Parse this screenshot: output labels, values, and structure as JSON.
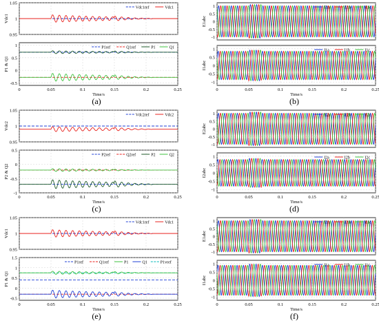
{
  "colors": {
    "ref_blue": "#1f3fd6",
    "red": "#e8201c",
    "green": "#3ec23e",
    "darkgreen": "#1f5a2a",
    "cyan": "#00b8b8",
    "axis": "#000000",
    "grid": "#c8c8c8"
  },
  "captions": [
    "(a)",
    "(b)",
    "(c)",
    "(d)",
    "(e)",
    "(f)"
  ],
  "chart_data": [
    {
      "id": "a-top",
      "type": "line",
      "ylabel": "Vdc1",
      "xlim": [
        0,
        0.25
      ],
      "ylim": [
        0.95,
        1.05
      ],
      "yticks": [
        "0.95",
        "1",
        "1.05"
      ],
      "xticks": [],
      "xlabel": "",
      "grid": true,
      "legend": [
        {
          "name": "Vdc1ref",
          "style": "dash",
          "color": "ref_blue"
        },
        {
          "name": "Vdc1",
          "style": "solid",
          "color": "red"
        }
      ],
      "series": [
        {
          "name": "Vdc1ref",
          "color": "ref_blue",
          "dash": true,
          "x": [
            0,
            0.25
          ],
          "y": [
            1.0,
            1.0
          ]
        },
        {
          "name": "Vdc1",
          "color": "red",
          "osc": {
            "base": 1.0,
            "amp1": 0.012,
            "amp2": 0.008,
            "f": 95
          }
        }
      ]
    },
    {
      "id": "a-bot",
      "type": "line",
      "ylabel": "P1 & Q1",
      "xlim": [
        0,
        0.25
      ],
      "ylim": [
        -0.6,
        1.1
      ],
      "yticks": [
        "-0.5",
        "0",
        "0.5",
        "1"
      ],
      "xticks": [
        "0",
        "0.05",
        "0.1",
        "0.15",
        "0.2",
        "0.25"
      ],
      "xlabel": "Time/s",
      "grid": true,
      "legend": [
        {
          "name": "P1ref",
          "style": "dash",
          "color": "ref_blue"
        },
        {
          "name": "Q1ref",
          "style": "dash",
          "color": "red"
        },
        {
          "name": "P1",
          "style": "solid",
          "color": "darkgreen"
        },
        {
          "name": "Q1",
          "style": "solid",
          "color": "green"
        }
      ],
      "series": [
        {
          "name": "P1ref",
          "color": "ref_blue",
          "dash": true,
          "x": [
            0,
            0.25
          ],
          "y": [
            0.72,
            0.72
          ]
        },
        {
          "name": "Q1ref",
          "color": "red",
          "dash": true,
          "x": [
            0,
            0.25
          ],
          "y": [
            -0.28,
            -0.28
          ]
        },
        {
          "name": "P1",
          "color": "darkgreen",
          "osc": {
            "base": 0.72,
            "amp1": 0.06,
            "amp2": 0.05,
            "f": 95
          }
        },
        {
          "name": "Q1",
          "color": "green",
          "osc": {
            "base": -0.28,
            "amp1": 0.16,
            "amp2": 0.1,
            "f": 95
          }
        }
      ]
    },
    {
      "id": "b-top",
      "type": "line",
      "ylabel": "E1abc",
      "xlim": [
        0,
        0.25
      ],
      "ylim": [
        -1.2,
        1.2
      ],
      "yticks": [
        "-1",
        "-0.5",
        "0",
        "0.5",
        "1"
      ],
      "xticks": [],
      "xlabel": "",
      "grid": true,
      "legend": [
        {
          "name": "E1a",
          "style": "solid",
          "color": "ref_blue"
        },
        {
          "name": "E1b",
          "style": "solid",
          "color": "red"
        },
        {
          "name": "E1c",
          "style": "solid",
          "color": "green"
        }
      ],
      "series": [
        {
          "name": "E1a",
          "color": "ref_blue",
          "sine": {
            "amp": 1.0,
            "f": 100,
            "ph": 0
          }
        },
        {
          "name": "E1b",
          "color": "red",
          "sine": {
            "amp": 1.0,
            "f": 100,
            "ph": -2.094
          }
        },
        {
          "name": "E1c",
          "color": "green",
          "sine": {
            "amp": 1.0,
            "f": 100,
            "ph": 2.094
          }
        }
      ]
    },
    {
      "id": "b-bot",
      "type": "line",
      "ylabel": "I1abc",
      "xlim": [
        0,
        0.25
      ],
      "ylim": [
        -1.2,
        1.2
      ],
      "yticks": [
        "-1",
        "-0.5",
        "0",
        "0.5",
        "1"
      ],
      "xticks": [
        "0",
        "0.05",
        "0.1",
        "0.15",
        "0.2",
        "0.25"
      ],
      "xlabel": "Time/s",
      "grid": true,
      "legend": [
        {
          "name": "I1a",
          "style": "solid",
          "color": "ref_blue"
        },
        {
          "name": "I1b",
          "style": "solid",
          "color": "red"
        },
        {
          "name": "I1c",
          "style": "solid",
          "color": "green"
        }
      ],
      "series": [
        {
          "name": "I1a",
          "color": "ref_blue",
          "sine": {
            "amp": 0.85,
            "f": 100,
            "ph": 0.5
          }
        },
        {
          "name": "I1b",
          "color": "red",
          "sine": {
            "amp": 0.85,
            "f": 100,
            "ph": -1.594
          }
        },
        {
          "name": "I1c",
          "color": "green",
          "sine": {
            "amp": 0.85,
            "f": 100,
            "ph": 2.594
          }
        }
      ]
    },
    {
      "id": "c-top",
      "type": "line",
      "ylabel": "Vdc2",
      "xlim": [
        0,
        0.25
      ],
      "ylim": [
        0.95,
        1.05
      ],
      "yticks": [
        "0.95",
        "1",
        "1.05"
      ],
      "xticks": [],
      "xlabel": "",
      "grid": true,
      "legend": [
        {
          "name": "Vdc2ref",
          "style": "dash",
          "color": "ref_blue"
        },
        {
          "name": "Vdc2",
          "style": "solid",
          "color": "red"
        }
      ],
      "series": [
        {
          "name": "Vdc2ref",
          "color": "ref_blue",
          "dash": true,
          "x": [
            0,
            0.25
          ],
          "y": [
            1.0,
            1.0
          ]
        },
        {
          "name": "Vdc2",
          "color": "red",
          "osc": {
            "base": 0.99,
            "amp1": 0.008,
            "amp2": 0.006,
            "f": 95
          }
        }
      ]
    },
    {
      "id": "c-bot",
      "type": "line",
      "ylabel": "P2 & Q2",
      "xlim": [
        0,
        0.25
      ],
      "ylim": [
        -1.0,
        0.5
      ],
      "yticks": [
        "-1",
        "-0.5",
        "0",
        "0.5"
      ],
      "xticks": [
        "0",
        "0.05",
        "0.1",
        "0.15",
        "0.2",
        "0.25"
      ],
      "xlabel": "Time/s",
      "grid": true,
      "legend": [
        {
          "name": "P2ref",
          "style": "dash",
          "color": "ref_blue"
        },
        {
          "name": "Q2ref",
          "style": "dash",
          "color": "red"
        },
        {
          "name": "P2",
          "style": "solid",
          "color": "darkgreen"
        },
        {
          "name": "Q2",
          "style": "solid",
          "color": "green"
        }
      ],
      "series": [
        {
          "name": "P2ref",
          "color": "ref_blue",
          "dash": true,
          "x": [
            0,
            0.25
          ],
          "y": [
            -0.7,
            -0.7
          ]
        },
        {
          "name": "Q2ref",
          "color": "red",
          "dash": true,
          "x": [
            0,
            0.25
          ],
          "y": [
            -0.2,
            -0.2
          ]
        },
        {
          "name": "Q2",
          "color": "green",
          "osc": {
            "base": -0.2,
            "amp1": 0.05,
            "amp2": 0.03,
            "f": 95
          }
        },
        {
          "name": "P2",
          "color": "darkgreen",
          "osc": {
            "base": -0.7,
            "amp1": 0.16,
            "amp2": 0.12,
            "f": 95
          }
        }
      ]
    },
    {
      "id": "d-top",
      "type": "line",
      "ylabel": "E2abc",
      "xlim": [
        0,
        0.25
      ],
      "ylim": [
        -1.2,
        1.2
      ],
      "yticks": [
        "-1",
        "-0.5",
        "0",
        "0.5",
        "1"
      ],
      "xticks": [],
      "xlabel": "",
      "grid": true,
      "legend": [
        {
          "name": "E2a",
          "style": "solid",
          "color": "ref_blue"
        },
        {
          "name": "E2b",
          "style": "solid",
          "color": "red"
        },
        {
          "name": "E2c",
          "style": "solid",
          "color": "green"
        }
      ],
      "series": [
        {
          "name": "E2a",
          "color": "ref_blue",
          "sine": {
            "amp": 1.0,
            "f": 100,
            "ph": 0.3
          }
        },
        {
          "name": "E2b",
          "color": "red",
          "sine": {
            "amp": 1.0,
            "f": 100,
            "ph": -1.794
          }
        },
        {
          "name": "E2c",
          "color": "green",
          "sine": {
            "amp": 1.0,
            "f": 100,
            "ph": 2.394
          }
        }
      ]
    },
    {
      "id": "d-bot",
      "type": "line",
      "ylabel": "I2abc",
      "xlim": [
        0,
        0.25
      ],
      "ylim": [
        -1.2,
        1.2
      ],
      "yticks": [
        "-1",
        "-0.5",
        "0",
        "0.5",
        "1"
      ],
      "xticks": [
        "0",
        "0.05",
        "0.1",
        "0.15",
        "0.2",
        "0.25"
      ],
      "xlabel": "Time/s",
      "grid": true,
      "legend": [
        {
          "name": "I2a",
          "style": "solid",
          "color": "ref_blue"
        },
        {
          "name": "I2b",
          "style": "solid",
          "color": "red"
        },
        {
          "name": "I2c",
          "style": "solid",
          "color": "green"
        }
      ],
      "series": [
        {
          "name": "I2a",
          "color": "ref_blue",
          "sine": {
            "amp": 0.8,
            "f": 100,
            "ph": 0.8
          }
        },
        {
          "name": "I2b",
          "color": "red",
          "sine": {
            "amp": 0.8,
            "f": 100,
            "ph": -1.294
          }
        },
        {
          "name": "I2c",
          "color": "green",
          "sine": {
            "amp": 0.8,
            "f": 100,
            "ph": 2.894
          }
        }
      ]
    },
    {
      "id": "e-top",
      "type": "line",
      "ylabel": "Vdc1",
      "xlim": [
        0,
        0.25
      ],
      "ylim": [
        0.95,
        1.05
      ],
      "yticks": [
        "0.95",
        "1",
        "1.05"
      ],
      "xticks": [],
      "xlabel": "",
      "grid": true,
      "legend": [
        {
          "name": "Vdc1ref",
          "style": "dash",
          "color": "ref_blue"
        },
        {
          "name": "Vdc1",
          "style": "solid",
          "color": "red"
        }
      ],
      "series": [
        {
          "name": "Vdc1ref",
          "color": "ref_blue",
          "dash": true,
          "x": [
            0,
            0.25
          ],
          "y": [
            1.0,
            1.0
          ]
        },
        {
          "name": "Vdc1",
          "color": "red",
          "osc": {
            "base": 1.0,
            "amp1": 0.012,
            "amp2": 0.008,
            "f": 95
          }
        }
      ]
    },
    {
      "id": "e-bot",
      "type": "line",
      "ylabel": "P1 & Q1",
      "xlim": [
        0,
        0.25
      ],
      "ylim": [
        -0.6,
        1.5
      ],
      "yticks": [
        "-0.5",
        "0",
        "0.5",
        "1",
        "1.5"
      ],
      "xticks": [
        "0",
        "0.05",
        "0.1",
        "0.15",
        "0.2",
        "0.25"
      ],
      "xlabel": "Time/s",
      "grid": true,
      "legend": [
        {
          "name": "P1ref",
          "style": "dash",
          "color": "ref_blue"
        },
        {
          "name": "Q1ref",
          "style": "dash",
          "color": "red"
        },
        {
          "name": "P1",
          "style": "solid",
          "color": "green"
        },
        {
          "name": "Q1",
          "style": "solid",
          "color": "ref_blue"
        },
        {
          "name": "P1vref",
          "style": "dash",
          "color": "cyan"
        }
      ],
      "series": [
        {
          "name": "P1ref",
          "color": "ref_blue",
          "dash": true,
          "x": [
            0,
            0.25
          ],
          "y": [
            0.4,
            0.4
          ]
        },
        {
          "name": "P1vref",
          "color": "cyan",
          "dash": true,
          "x": [
            0,
            0.25
          ],
          "y": [
            0.75,
            0.75
          ]
        },
        {
          "name": "Q1ref",
          "color": "red",
          "dash": true,
          "x": [
            0,
            0.25
          ],
          "y": [
            -0.3,
            -0.3
          ]
        },
        {
          "name": "P1",
          "color": "green",
          "osc": {
            "base": 0.75,
            "amp1": 0.08,
            "amp2": 0.06,
            "f": 95
          }
        },
        {
          "name": "Q1",
          "color": "ref_blue",
          "osc": {
            "base": -0.3,
            "amp1": 0.2,
            "amp2": 0.12,
            "f": 95
          }
        }
      ]
    },
    {
      "id": "f-top",
      "type": "line",
      "ylabel": "E1abc",
      "xlim": [
        0,
        0.25
      ],
      "ylim": [
        -1.2,
        1.2
      ],
      "yticks": [
        "-1",
        "-0.5",
        "0",
        "0.5",
        "1"
      ],
      "xticks": [],
      "xlabel": "",
      "grid": true,
      "legend": [
        {
          "name": "E1a",
          "style": "solid",
          "color": "ref_blue"
        },
        {
          "name": "E1b",
          "style": "solid",
          "color": "red"
        },
        {
          "name": "E1c",
          "style": "solid",
          "color": "green"
        }
      ],
      "series": [
        {
          "name": "E1a",
          "color": "ref_blue",
          "sine": {
            "amp": 1.0,
            "f": 100,
            "ph": 0.2
          }
        },
        {
          "name": "E1b",
          "color": "red",
          "sine": {
            "amp": 1.0,
            "f": 100,
            "ph": -1.894
          }
        },
        {
          "name": "E1c",
          "color": "green",
          "sine": {
            "amp": 1.0,
            "f": 100,
            "ph": 2.294
          }
        }
      ]
    },
    {
      "id": "f-bot",
      "type": "line",
      "ylabel": "I1abc",
      "xlim": [
        0,
        0.25
      ],
      "ylim": [
        -1.2,
        1.2
      ],
      "yticks": [
        "-1",
        "-0.5",
        "0",
        "0.5",
        "1"
      ],
      "xticks": [
        "0",
        "0.05",
        "0.1",
        "0.15",
        "0.2",
        "0.25"
      ],
      "xlabel": "Time/s",
      "grid": true,
      "legend": [
        {
          "name": "I1a",
          "style": "solid",
          "color": "ref_blue"
        },
        {
          "name": "I1b",
          "style": "solid",
          "color": "red"
        },
        {
          "name": "I1c",
          "style": "solid",
          "color": "green"
        }
      ],
      "series": [
        {
          "name": "I1a",
          "color": "ref_blue",
          "sine": {
            "amp": 0.9,
            "f": 100,
            "ph": 0.6
          }
        },
        {
          "name": "I1b",
          "color": "red",
          "sine": {
            "amp": 0.9,
            "f": 100,
            "ph": -1.494
          }
        },
        {
          "name": "I1c",
          "color": "green",
          "sine": {
            "amp": 0.9,
            "f": 100,
            "ph": 2.694
          }
        }
      ]
    }
  ]
}
